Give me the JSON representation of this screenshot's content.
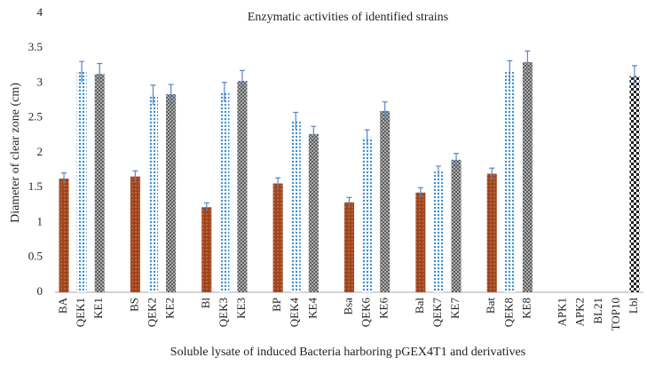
{
  "chart_data": {
    "type": "bar",
    "title": "Enzymatic activities of identified strains",
    "x_label": "Soluble lysate of induced Bacteria harboring pGEX4T1 and derivatives",
    "y_label": "Diameter of clear zone (cm)",
    "categories": [
      "BA",
      "QEK1",
      "KE1",
      null,
      "BS",
      "QEK2",
      "KE2",
      null,
      "Bl",
      "QEK3",
      "KE3",
      null,
      "BP",
      "QEK4",
      "KE4",
      null,
      "Bsa",
      "QEK6",
      "KE6",
      null,
      "Bal",
      "QEK7",
      "KE7",
      null,
      "Bat",
      "QEK8",
      "KE8",
      null,
      "APK1",
      "APK2",
      "BL21",
      "TOP10",
      "Lbl"
    ],
    "values": [
      1.63,
      3.16,
      3.13,
      null,
      1.66,
      2.83,
      2.84,
      null,
      1.22,
      2.87,
      3.03,
      null,
      1.56,
      2.46,
      2.27,
      null,
      1.29,
      2.22,
      2.6,
      null,
      1.43,
      1.73,
      1.9,
      null,
      1.7,
      3.16,
      3.3,
      null,
      0,
      0,
      0,
      0,
      3.1
    ],
    "errors": [
      0.08,
      0.15,
      0.15,
      null,
      0.08,
      0.14,
      0.14,
      null,
      0.06,
      0.14,
      0.15,
      null,
      0.08,
      0.12,
      0.11,
      null,
      0.07,
      0.11,
      0.13,
      null,
      0.07,
      0.08,
      0.09,
      null,
      0.08,
      0.16,
      0.16,
      null,
      null,
      null,
      null,
      null,
      0.15
    ],
    "colors": [
      "#a0451e",
      "#3a8fd0",
      "#555555",
      null,
      "#a0451e",
      "#3a8fd0",
      "#555555",
      null,
      "#a0451e",
      "#3a8fd0",
      "#555555",
      null,
      "#a0451e",
      "#3a8fd0",
      "#555555",
      null,
      "#a0451e",
      "#3a8fd0",
      "#555555",
      null,
      "#a0451e",
      "#3a8fd0",
      "#555555",
      null,
      "#a0451e",
      "#3a8fd0",
      "#555555",
      null,
      "#a0451e",
      "#3a8fd0",
      "#555555",
      "#555555",
      "#222222"
    ],
    "error_color": "#5b86c4",
    "ylim": [
      0,
      4
    ],
    "yticks": [
      0,
      0.5,
      1,
      1.5,
      2,
      2.5,
      3,
      3.5,
      4
    ],
    "grid": false
  }
}
